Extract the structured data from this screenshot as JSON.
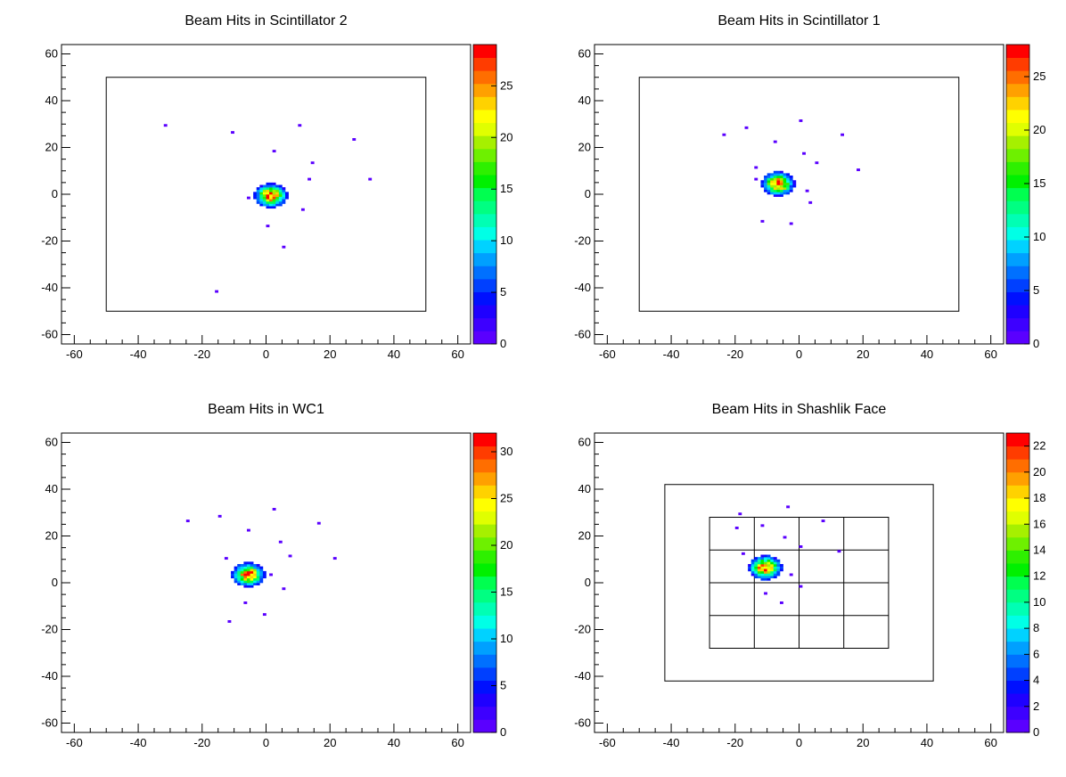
{
  "palette": [
    "#5a00ff",
    "#3d00ff",
    "#1f00ff",
    "#0010ff",
    "#0040ff",
    "#0070ff",
    "#00a0ff",
    "#00d2ff",
    "#00ffe6",
    "#00ffb4",
    "#00ff82",
    "#00ff50",
    "#00f000",
    "#2ef000",
    "#6ef000",
    "#a6f000",
    "#e0ff00",
    "#ffff00",
    "#ffd200",
    "#ffa000",
    "#ff6e00",
    "#ff3c00",
    "#ff0000"
  ],
  "chart_data": [
    {
      "type": "heatmap",
      "title": "Beam Hits in Scintillator 2",
      "xlim": [
        -64,
        64
      ],
      "ylim": [
        -64,
        64
      ],
      "x_ticks": [
        -60,
        -40,
        -20,
        0,
        20,
        40,
        60
      ],
      "y_ticks": [
        -60,
        -40,
        -20,
        0,
        20,
        40,
        60
      ],
      "z_max": 29,
      "z_ticks": [
        0,
        5,
        10,
        15,
        20,
        25
      ],
      "outlines": [
        [
          -50,
          -50,
          50,
          50
        ]
      ],
      "grid_lines": {
        "x": [],
        "y": []
      },
      "beam": {
        "cx": 1.5,
        "cy": -0.5,
        "sigma": 2.6,
        "peak": 29,
        "radius": 5
      },
      "scatter": [
        [
          -31.5,
          29.5
        ],
        [
          -10.5,
          26.5
        ],
        [
          10.5,
          29.5
        ],
        [
          27.5,
          23.5
        ],
        [
          2.5,
          18.5
        ],
        [
          14.5,
          13.5
        ],
        [
          32.5,
          6.5
        ],
        [
          13.5,
          6.5
        ],
        [
          -5.5,
          -1.5
        ],
        [
          11.5,
          -6.5
        ],
        [
          0.5,
          -13.5
        ],
        [
          5.5,
          -22.5
        ],
        [
          -15.5,
          -41.5
        ]
      ]
    },
    {
      "type": "heatmap",
      "title": "Beam Hits in Scintillator 1",
      "xlim": [
        -64,
        64
      ],
      "ylim": [
        -64,
        64
      ],
      "x_ticks": [
        -60,
        -40,
        -20,
        0,
        20,
        40,
        60
      ],
      "y_ticks": [
        -60,
        -40,
        -20,
        0,
        20,
        40,
        60
      ],
      "z_max": 28,
      "z_ticks": [
        0,
        5,
        10,
        15,
        20,
        25
      ],
      "outlines": [
        [
          -50,
          -50,
          50,
          50
        ]
      ],
      "grid_lines": {
        "x": [],
        "y": []
      },
      "beam": {
        "cx": -6.5,
        "cy": 4.5,
        "sigma": 2.6,
        "peak": 28,
        "radius": 5
      },
      "scatter": [
        [
          -23.5,
          25.5
        ],
        [
          -16.5,
          28.5
        ],
        [
          0.5,
          31.5
        ],
        [
          13.5,
          25.5
        ],
        [
          -7.5,
          22.5
        ],
        [
          1.5,
          17.5
        ],
        [
          5.5,
          13.5
        ],
        [
          18.5,
          10.5
        ],
        [
          -13.5,
          11.5
        ],
        [
          2.5,
          1.5
        ],
        [
          3.5,
          -3.5
        ],
        [
          -11.5,
          -11.5
        ],
        [
          -2.5,
          -12.5
        ],
        [
          -13.5,
          6.5
        ]
      ]
    },
    {
      "type": "heatmap",
      "title": "Beam Hits in WC1",
      "xlim": [
        -64,
        64
      ],
      "ylim": [
        -64,
        64
      ],
      "x_ticks": [
        -60,
        -40,
        -20,
        0,
        20,
        40,
        60
      ],
      "y_ticks": [
        -60,
        -40,
        -20,
        0,
        20,
        40,
        60
      ],
      "z_max": 32,
      "z_ticks": [
        0,
        5,
        10,
        15,
        20,
        25,
        30
      ],
      "outlines": [],
      "grid_lines": {
        "x": [],
        "y": []
      },
      "beam": {
        "cx": -5.5,
        "cy": 3.5,
        "sigma": 2.6,
        "peak": 32,
        "radius": 5
      },
      "scatter": [
        [
          -24.5,
          26.5
        ],
        [
          -14.5,
          28.5
        ],
        [
          2.5,
          31.5
        ],
        [
          16.5,
          25.5
        ],
        [
          -5.5,
          22.5
        ],
        [
          4.5,
          17.5
        ],
        [
          7.5,
          11.5
        ],
        [
          21.5,
          10.5
        ],
        [
          -12.5,
          10.5
        ],
        [
          5.5,
          -2.5
        ],
        [
          -6.5,
          -8.5
        ],
        [
          -11.5,
          -16.5
        ],
        [
          -0.5,
          -13.5
        ],
        [
          1.5,
          3.5
        ]
      ]
    },
    {
      "type": "heatmap",
      "title": "Beam Hits in Shashlik Face",
      "xlim": [
        -64,
        64
      ],
      "ylim": [
        -64,
        64
      ],
      "x_ticks": [
        -60,
        -40,
        -20,
        0,
        20,
        40,
        60
      ],
      "y_ticks": [
        -60,
        -40,
        -20,
        0,
        20,
        40,
        60
      ],
      "z_max": 23,
      "z_ticks": [
        0,
        2,
        4,
        6,
        8,
        10,
        12,
        14,
        16,
        18,
        20,
        22
      ],
      "outlines": [
        [
          -42,
          -42,
          42,
          42
        ],
        [
          -28,
          -28,
          28,
          28
        ]
      ],
      "grid_lines": {
        "x": [
          -14,
          0,
          14
        ],
        "y": [
          -14,
          0,
          14
        ],
        "extent": [
          -28,
          28
        ]
      },
      "beam": {
        "cx": -10.5,
        "cy": 6.5,
        "sigma": 2.6,
        "peak": 23,
        "radius": 5
      },
      "scatter": [
        [
          -18.5,
          29.5
        ],
        [
          -3.5,
          32.5
        ],
        [
          7.5,
          26.5
        ],
        [
          -11.5,
          24.5
        ],
        [
          -4.5,
          19.5
        ],
        [
          -19.5,
          23.5
        ],
        [
          0.5,
          15.5
        ],
        [
          12.5,
          13.5
        ],
        [
          -17.5,
          12.5
        ],
        [
          0.5,
          -1.5
        ],
        [
          -5.5,
          -8.5
        ],
        [
          -10.5,
          -4.5
        ],
        [
          -2.5,
          3.5
        ]
      ]
    }
  ]
}
